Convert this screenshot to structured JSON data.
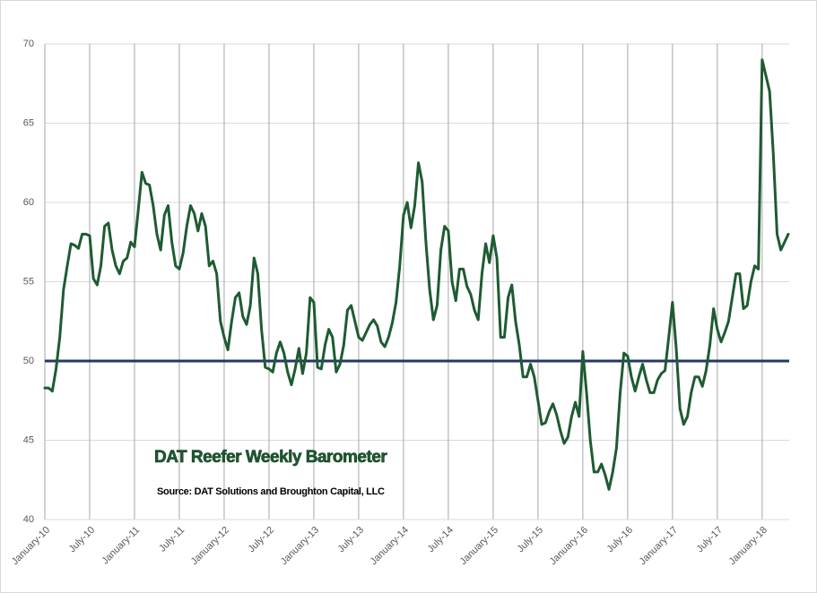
{
  "chart_data": {
    "type": "line",
    "annotations": [
      "DAT Reefer Weekly Barometer",
      "Source: DAT Solutions and Broughton Capital, LLC"
    ],
    "categories": [
      "January-10",
      null,
      null,
      null,
      null,
      null,
      null,
      null,
      null,
      null,
      null,
      null,
      "July-10",
      null,
      null,
      null,
      null,
      null,
      null,
      null,
      null,
      null,
      null,
      null,
      "January-11",
      null,
      null,
      null,
      null,
      null,
      null,
      null,
      null,
      null,
      null,
      null,
      "July-11",
      null,
      null,
      null,
      null,
      null,
      null,
      null,
      null,
      null,
      null,
      null,
      "January-12",
      null,
      null,
      null,
      null,
      null,
      null,
      null,
      null,
      null,
      null,
      null,
      "July-12",
      null,
      null,
      null,
      null,
      null,
      null,
      null,
      null,
      null,
      null,
      null,
      "January-13",
      null,
      null,
      null,
      null,
      null,
      null,
      null,
      null,
      null,
      null,
      null,
      "July-13",
      null,
      null,
      null,
      null,
      null,
      null,
      null,
      null,
      null,
      null,
      null,
      "January-14",
      null,
      null,
      null,
      null,
      null,
      null,
      null,
      null,
      null,
      null,
      null,
      "July-14",
      null,
      null,
      null,
      null,
      null,
      null,
      null,
      null,
      null,
      null,
      null,
      "January-15",
      null,
      null,
      null,
      null,
      null,
      null,
      null,
      null,
      null,
      null,
      null,
      "July-15",
      null,
      null,
      null,
      null,
      null,
      null,
      null,
      null,
      null,
      null,
      null,
      "January-16",
      null,
      null,
      null,
      null,
      null,
      null,
      null,
      null,
      null,
      null,
      null,
      "July-16",
      null,
      null,
      null,
      null,
      null,
      null,
      null,
      null,
      null,
      null,
      null,
      "January-17",
      null,
      null,
      null,
      null,
      null,
      null,
      null,
      null,
      null,
      null,
      null,
      "July-17",
      null,
      null,
      null,
      null,
      null,
      null,
      null,
      null,
      null,
      null,
      null,
      "January-18",
      null,
      null,
      null,
      null,
      null,
      null,
      null
    ],
    "series": [
      {
        "color": "#1e5b32",
        "values": [
          48.3,
          48.3,
          48.1,
          49.5,
          51.5,
          54.5,
          56,
          57.4,
          57.3,
          57.1,
          58,
          58,
          57.9,
          55.2,
          54.8,
          56,
          58.5,
          58.7,
          57,
          56,
          55.5,
          56.3,
          56.5,
          57.5,
          57.2,
          59.5,
          61.9,
          61.2,
          61.1,
          59.8,
          58,
          57,
          59.2,
          59.8,
          57.5,
          56,
          55.8,
          56.8,
          58.5,
          59.8,
          59.3,
          58.2,
          59.3,
          58.5,
          56,
          56.3,
          55.5,
          52.5,
          51.5,
          50.7,
          52.5,
          54,
          54.3,
          52.8,
          52.3,
          53.5,
          56.5,
          55.5,
          52,
          49.6,
          49.5,
          49.3,
          50.5,
          51.2,
          50.5,
          49.3,
          48.5,
          49.5,
          50.8,
          49.2,
          50.5,
          54,
          53.7,
          49.6,
          49.5,
          51,
          52,
          51.5,
          49.3,
          49.8,
          51,
          53.2,
          53.5,
          52.5,
          51.5,
          51.3,
          51.8,
          52.3,
          52.6,
          52.2,
          51.2,
          50.9,
          51.5,
          52.4,
          53.7,
          56,
          59.2,
          60,
          58.4,
          59.8,
          62.5,
          61.3,
          57.5,
          54.5,
          52.6,
          53.5,
          57,
          58.5,
          58.2,
          55,
          53.8,
          55.8,
          55.8,
          54.7,
          54.2,
          53.2,
          52.6,
          55.5,
          57.4,
          56.2,
          57.9,
          56.5,
          51.5,
          51.5,
          54,
          54.8,
          52.5,
          51,
          49,
          49,
          49.8,
          49,
          47.5,
          46,
          46.1,
          46.8,
          47.3,
          46.6,
          45.6,
          44.8,
          45.2,
          46.5,
          47.4,
          46.5,
          50.6,
          48,
          45,
          43,
          43,
          43.5,
          42.8,
          41.9,
          43,
          44.5,
          48,
          50.5,
          50.3,
          49,
          48.1,
          49,
          49.8,
          48.8,
          48,
          48,
          48.8,
          49.2,
          49.4,
          51.5,
          53.7,
          50.8,
          47,
          46,
          46.5,
          48,
          49,
          49,
          48.4,
          49.4,
          51,
          53.3,
          52,
          51.2,
          51.8,
          52.5,
          54,
          55.5,
          55.5,
          53.3,
          53.5,
          55,
          56,
          55.8,
          69,
          68,
          67,
          63,
          58,
          57,
          57.5,
          58
        ]
      }
    ],
    "reference_line": {
      "value": 50,
      "color": "#1f3864"
    },
    "ylim": [
      40,
      70
    ],
    "yticks": [
      40,
      45,
      50,
      55,
      60,
      65,
      70
    ],
    "grid": true
  }
}
